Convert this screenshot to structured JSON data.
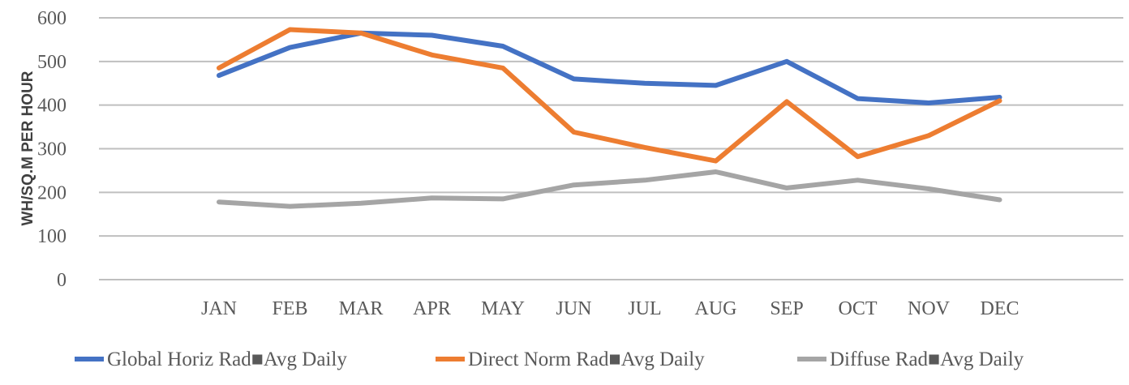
{
  "chart_data": {
    "type": "line",
    "title": "",
    "xlabel": "",
    "ylabel": "WH/SQ.M PER HOUR",
    "ylim": [
      0,
      600
    ],
    "yticks": [
      0,
      100,
      200,
      300,
      400,
      500,
      600
    ],
    "ytick_labels": [
      "0",
      "100",
      "200",
      "300",
      "400",
      "500",
      "600"
    ],
    "grid": true,
    "legend_position": "bottom",
    "categories": [
      "JAN",
      "FEB",
      "MAR",
      "APR",
      "MAY",
      "JUN",
      "JUL",
      "AUG",
      "SEP",
      "OCT",
      "NOV",
      "DEC"
    ],
    "series": [
      {
        "name": "Global Horiz Rad■Avg Daily",
        "color": "#4472c4",
        "values": [
          468,
          532,
          565,
          560,
          535,
          460,
          450,
          445,
          500,
          415,
          405,
          418
        ]
      },
      {
        "name": "Direct Norm Rad■Avg Daily",
        "color": "#ed7d31",
        "values": [
          485,
          573,
          565,
          515,
          485,
          338,
          303,
          272,
          408,
          282,
          330,
          410
        ]
      },
      {
        "name": "Diffuse Rad■Avg Daily",
        "color": "#a5a5a5",
        "values": [
          178,
          168,
          175,
          187,
          185,
          217,
          228,
          247,
          210,
          228,
          208,
          183
        ]
      }
    ]
  }
}
